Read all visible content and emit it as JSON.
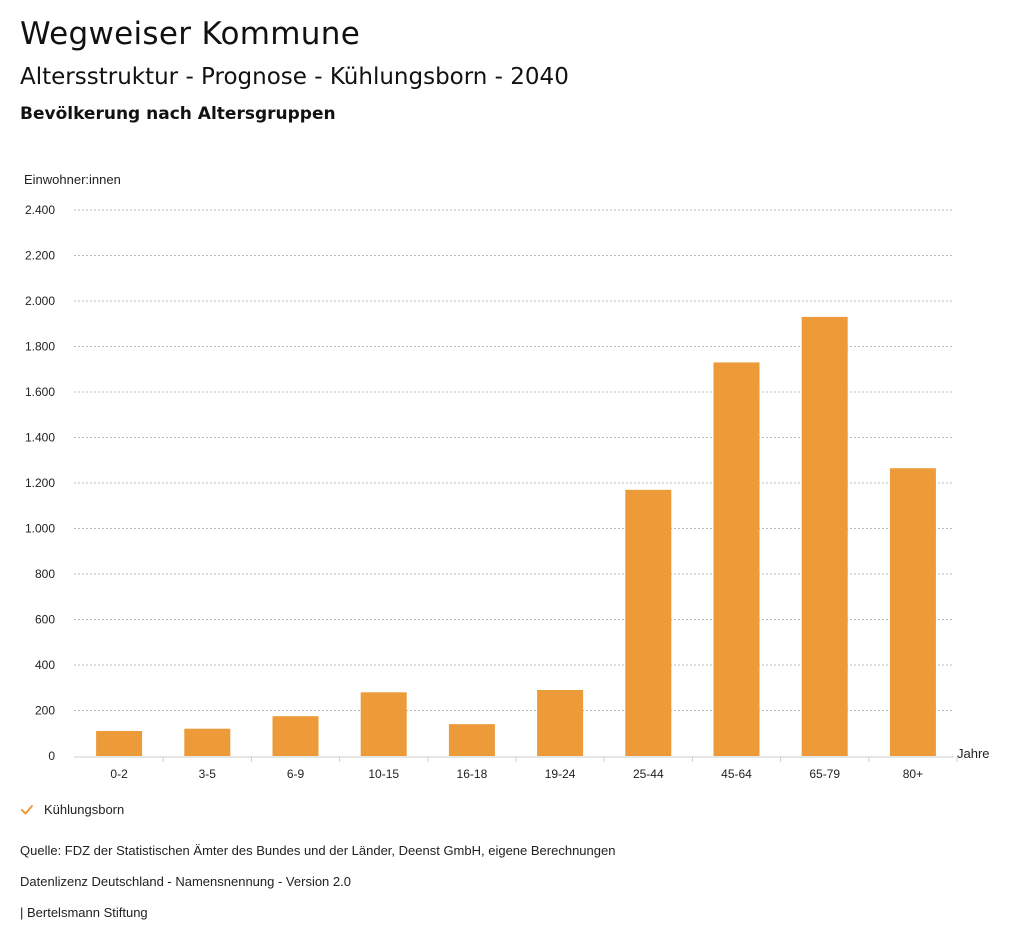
{
  "header": {
    "title": "Wegweiser Kommune",
    "subtitle": "Altersstruktur - Prognose - Kühlungsborn - 2040",
    "section": "Bevölkerung nach Altersgruppen"
  },
  "colors": {
    "bar": "#ED9A38",
    "grid": "#bbbbbb",
    "axis": "#cccccc",
    "text": "#222222"
  },
  "chart_data": {
    "type": "bar",
    "title": "Bevölkerung nach Altersgruppen",
    "ylabel": "Einwohner:innen",
    "xlabel": "Jahre",
    "categories": [
      "0-2",
      "3-5",
      "6-9",
      "10-15",
      "16-18",
      "19-24",
      "25-44",
      "45-64",
      "65-79",
      "80+"
    ],
    "series": [
      {
        "name": "Kühlungsborn",
        "values": [
          110,
          120,
          175,
          280,
          140,
          290,
          1170,
          1730,
          1930,
          1265
        ]
      }
    ],
    "ylim": [
      0,
      2400
    ],
    "yticks": [
      0,
      200,
      400,
      600,
      800,
      1000,
      1200,
      1400,
      1600,
      1800,
      2000,
      2200,
      2400
    ],
    "ytick_labels": [
      "0",
      "200",
      "400",
      "600",
      "800",
      "1.000",
      "1.200",
      "1.400",
      "1.600",
      "1.800",
      "2.000",
      "2.200",
      "2.400"
    ],
    "grid": true,
    "legend": "bottom-left"
  },
  "legend": {
    "label": "Kühlungsborn"
  },
  "footer": {
    "source": "Quelle: FDZ der Statistischen Ämter des Bundes und der Länder, Deenst GmbH, eigene Berechnungen",
    "license": "Datenlizenz Deutschland - Namensnennung - Version 2.0",
    "publisher": "| Bertelsmann Stiftung"
  }
}
